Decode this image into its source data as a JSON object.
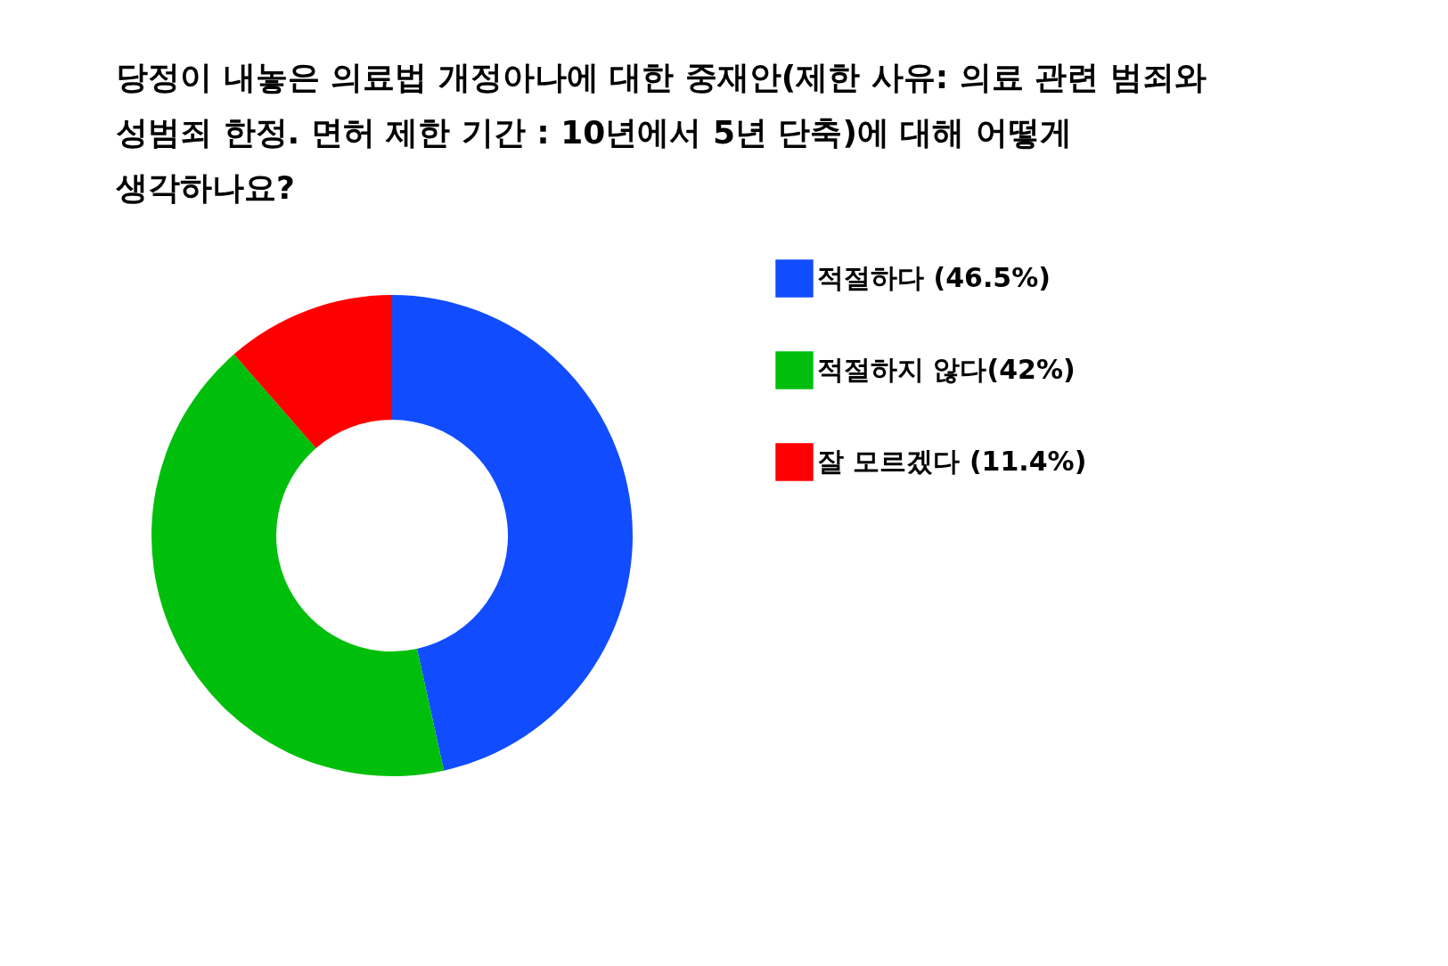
{
  "chart_data": {
    "type": "donut",
    "title": "당정이 내놓은 의료법 개정아나에 대한 중재안(제한 사유: 의료 관련 범죄와 성범죄 한정. 면허 제한 기간 : 10년에서 5년 단축)에 대해 어떻게 생각하나요?",
    "categories": [
      "적절하다 (46.5%)",
      "적절하지 않다(42%)",
      "잘 모르겠다 (11.4%)"
    ],
    "values": [
      46.5,
      42,
      11.4
    ],
    "colors": [
      "#114dff",
      "#00bf0c",
      "#ff0000"
    ],
    "legend": "right"
  }
}
